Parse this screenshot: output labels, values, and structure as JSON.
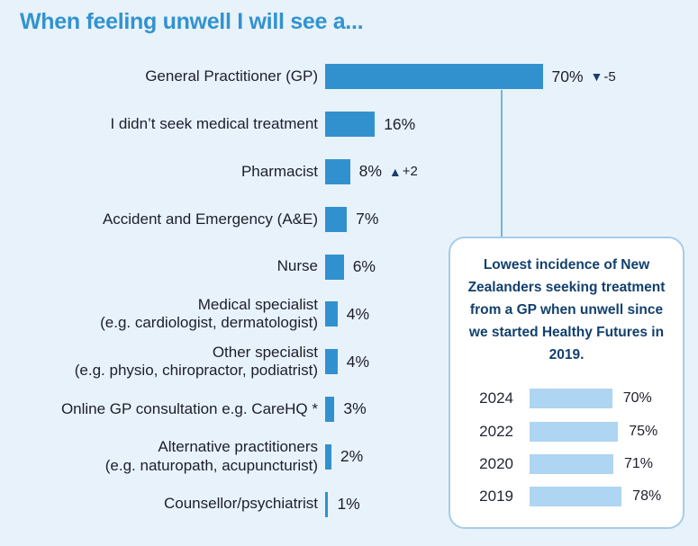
{
  "title": "When feeling unwell I will see a...",
  "colors": {
    "background": "#e8f2fb",
    "bar_primary": "#3191ce",
    "bar_secondary": "#aed5f1",
    "title_text": "#3193d0",
    "text_dark": "#1e1e2c",
    "navy": "#1b3e6f",
    "connector_line": "#77afd9",
    "callout_border": "#a6cce9",
    "callout_background": "#ffffff"
  },
  "chart_data": [
    {
      "type": "bar",
      "orientation": "horizontal",
      "title": "When feeling unwell I will see a...",
      "unit": "%",
      "xlim": [
        0,
        100
      ],
      "grid": false,
      "legend": false,
      "categories": [
        "General Practitioner (GP)",
        "I didn’t seek medical treatment",
        "Pharmacist",
        "Accident and Emergency (A&E)",
        "Nurse",
        "Medical specialist (e.g. cardiologist, dermatologist)",
        "Other specialist (e.g. physio, chiropractor, podiatrist)",
        "Online GP consultation e.g. CareHQ *",
        "Alternative practitioners (e.g. naturopath, acupuncturist)",
        "Counsellor/psychiatrist"
      ],
      "values": [
        70,
        16,
        8,
        7,
        6,
        4,
        4,
        3,
        2,
        1
      ],
      "rows": [
        {
          "line1": "General Practitioner (GP)",
          "value_label": "70%",
          "change_symbol": "▼",
          "change_text": "-5"
        },
        {
          "line1": "I didn’t seek medical treatment",
          "value_label": "16%"
        },
        {
          "line1": "Pharmacist",
          "value_label": "8%",
          "change_symbol": "▲",
          "change_text": "+2"
        },
        {
          "line1": "Accident and Emergency (A&E)",
          "value_label": "7%"
        },
        {
          "line1": "Nurse",
          "value_label": "6%"
        },
        {
          "line1": "Medical specialist",
          "line2": "(e.g. cardiologist, dermatologist)",
          "value_label": "4%"
        },
        {
          "line1": "Other specialist",
          "line2": "(e.g. physio, chiropractor, podiatrist)",
          "value_label": "4%"
        },
        {
          "line1": "Online GP consultation e.g. CareHQ *",
          "value_label": "3%"
        },
        {
          "line1": "Alternative practitioners",
          "line2": "(e.g. naturopath, acupuncturist)",
          "value_label": "2%"
        },
        {
          "line1": "Counsellor/psychiatrist",
          "value_label": "1%"
        }
      ]
    },
    {
      "type": "bar",
      "orientation": "horizontal",
      "unit": "%",
      "xlim": [
        0,
        100
      ],
      "grid": false,
      "legend": false,
      "categories": [
        "2024",
        "2022",
        "2020",
        "2019"
      ],
      "values": [
        70,
        75,
        71,
        78
      ],
      "value_labels": [
        "70%",
        "75%",
        "71%",
        "78%"
      ]
    }
  ],
  "callout": {
    "text": "Lowest incidence of New Zealanders seeking treatment from a GP when unwell since we started Healthy Futures in 2019."
  }
}
